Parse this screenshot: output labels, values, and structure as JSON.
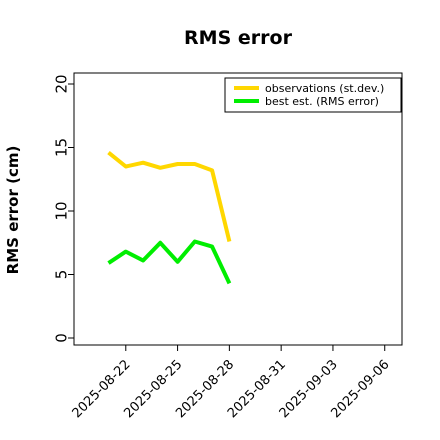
{
  "chart_data": {
    "type": "line",
    "title": "RMS error",
    "ylabel": "RMS error (cm)",
    "xlabel": "",
    "ylim": [
      0,
      20
    ],
    "yticks": [
      0,
      5,
      10,
      15,
      20
    ],
    "xlim": [
      "2025-08-19",
      "2025-09-07"
    ],
    "xticks": [
      "2025-08-22",
      "2025-08-25",
      "2025-08-28",
      "2025-08-31",
      "2025-09-03",
      "2025-09-06"
    ],
    "highlight_tick": "2025-08-28",
    "highlight_color": "#228b22",
    "legend_position": "top-right",
    "x": [
      "2025-08-21",
      "2025-08-22",
      "2025-08-23",
      "2025-08-24",
      "2025-08-25",
      "2025-08-26",
      "2025-08-27",
      "2025-08-28"
    ],
    "series": [
      {
        "name": "observations (st.dev.)",
        "color": "#ffd700",
        "values": [
          14.6,
          13.5,
          13.8,
          13.4,
          13.7,
          13.7,
          13.2,
          7.6
        ]
      },
      {
        "name": "best est. (RMS error)",
        "color": "#00ee00",
        "values": [
          5.9,
          6.8,
          6.1,
          7.5,
          6.0,
          7.6,
          7.2,
          4.3
        ]
      }
    ]
  }
}
